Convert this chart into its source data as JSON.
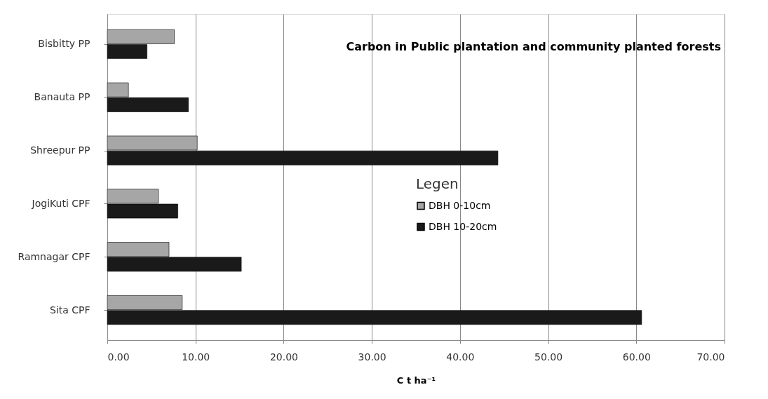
{
  "chart_data": {
    "type": "bar",
    "orientation": "horizontal",
    "title": "Carbon in Public plantation and community planted forests",
    "xlabel": "C t ha⁻¹",
    "legend_title": "Legen",
    "categories": [
      "Bisbitty PP",
      "Banauta PP",
      "Shreepur PP",
      "JogiKuti CPF",
      "Ramnagar  CPF",
      "Sita CPF"
    ],
    "series": [
      {
        "name": "DBH 0-10cm",
        "color": "#a6a6a6",
        "values": [
          7.6,
          2.4,
          10.2,
          5.8,
          7.0,
          8.5
        ]
      },
      {
        "name": "DBH 10-20cm",
        "color": "#1a1a1a",
        "values": [
          4.5,
          9.2,
          44.3,
          8.0,
          15.2,
          60.6
        ]
      }
    ],
    "xlim": [
      0,
      70
    ],
    "xticks": [
      {
        "value": 0,
        "label": "0.00"
      },
      {
        "value": 10,
        "label": "10.00"
      },
      {
        "value": 20,
        "label": "20.00"
      },
      {
        "value": 30,
        "label": "30.00"
      },
      {
        "value": 40,
        "label": "40.00"
      },
      {
        "value": 50,
        "label": "50.00"
      },
      {
        "value": 60,
        "label": "60.00"
      },
      {
        "value": 70,
        "label": "70.00"
      }
    ],
    "grid": "x",
    "legend": "right"
  }
}
